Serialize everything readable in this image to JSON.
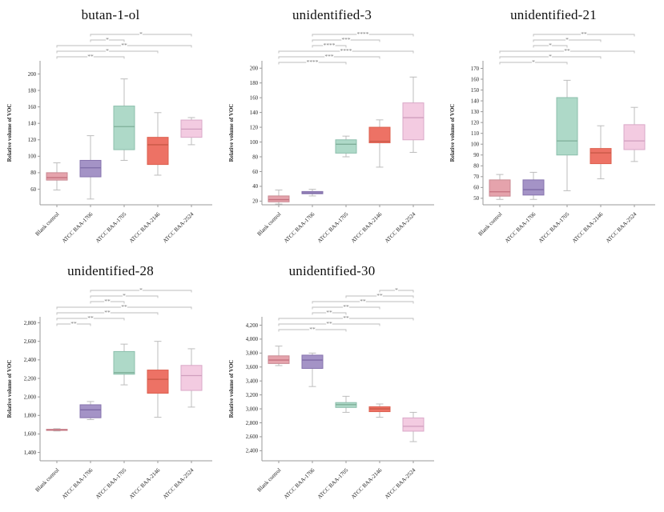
{
  "page": {
    "background": "#ffffff"
  },
  "palette": {
    "categories": [
      "Blank control",
      "ATCC BAA-1706",
      "ATCC BAA-1705",
      "ATCC BAA-2146",
      "ATCC BAA-2524"
    ],
    "box_styles": [
      {
        "category": "Blank control",
        "fill": "#E5A3AC",
        "stroke": "#C98A93",
        "median": "#C4717E"
      },
      {
        "category": "ATCC BAA-1706",
        "fill": "#A493C6",
        "stroke": "#8673AE",
        "median": "#7E6BA6"
      },
      {
        "category": "ATCC BAA-1705",
        "fill": "#AED9C8",
        "stroke": "#8CBFAC",
        "median": "#7FAE99"
      },
      {
        "category": "ATCC BAA-2146",
        "fill": "#ED7265",
        "stroke": "#DC604F",
        "median": "#C85847"
      },
      {
        "category": "ATCC BAA-2524",
        "fill": "#F3CBE1",
        "stroke": "#DAA8C8",
        "median": "#D09EBE"
      }
    ],
    "whisker_color": "#bdbdbd",
    "bracket_color": "#bdbdbd",
    "sig_label_color": "#777777",
    "axis_color": "#9a9a9a",
    "tick_text_color": "#222222"
  },
  "chart_data": [
    {
      "type": "box",
      "title": "butan-1-ol",
      "ylabel": "Relative volume of VOC",
      "categories": [
        "Blank control",
        "ATCC BAA-1706",
        "ATCC BAA-1705",
        "ATCC BAA-2146",
        "ATCC BAA-2524"
      ],
      "ylim": [
        41,
        216
      ],
      "yticks": [
        60,
        80,
        100,
        120,
        140,
        160,
        180,
        200
      ],
      "grid": false,
      "boxes": [
        {
          "whisker_low": 59,
          "q1": 71,
          "median": 74,
          "q3": 80,
          "whisker_high": 92
        },
        {
          "whisker_low": 48,
          "q1": 75,
          "median": 86,
          "q3": 95,
          "whisker_high": 125
        },
        {
          "whisker_low": 95,
          "q1": 108,
          "median": 136,
          "q3": 161,
          "whisker_high": 194
        },
        {
          "whisker_low": 77,
          "q1": 90,
          "median": 114,
          "q3": 123,
          "whisker_high": 153
        },
        {
          "whisker_low": 114,
          "q1": 123,
          "median": 133,
          "q3": 144,
          "whisker_high": 147
        }
      ],
      "significance_brackets": [
        {
          "from": 1,
          "to": 4,
          "label": "*"
        },
        {
          "from": 1,
          "to": 2,
          "label": "*"
        },
        {
          "from": 0,
          "to": 4,
          "label": "**"
        },
        {
          "from": 0,
          "to": 3,
          "label": "*"
        },
        {
          "from": 0,
          "to": 2,
          "label": "**"
        }
      ]
    },
    {
      "type": "box",
      "title": "unidentified-3",
      "ylabel": "Relative volume of VOC",
      "categories": [
        "Blank control",
        "ATCC BAA-1706",
        "ATCC BAA-1705",
        "ATCC BAA-2146",
        "ATCC BAA-2524"
      ],
      "ylim": [
        15,
        210
      ],
      "yticks": [
        20,
        40,
        60,
        80,
        100,
        120,
        140,
        160,
        180,
        200
      ],
      "grid": false,
      "boxes": [
        {
          "whisker_low": 16,
          "q1": 19,
          "median": 22,
          "q3": 27,
          "whisker_high": 35
        },
        {
          "whisker_low": 27,
          "q1": 30,
          "median": 31,
          "q3": 33,
          "whisker_high": 36
        },
        {
          "whisker_low": 80,
          "q1": 85,
          "median": 97,
          "q3": 103,
          "whisker_high": 108
        },
        {
          "whisker_low": 66,
          "q1": 99,
          "median": 101,
          "q3": 120,
          "whisker_high": 130
        },
        {
          "whisker_low": 86,
          "q1": 103,
          "median": 133,
          "q3": 153,
          "whisker_high": 188
        }
      ],
      "significance_brackets": [
        {
          "from": 1,
          "to": 4,
          "label": "****"
        },
        {
          "from": 1,
          "to": 3,
          "label": "***"
        },
        {
          "from": 1,
          "to": 2,
          "label": "****"
        },
        {
          "from": 0,
          "to": 4,
          "label": "****"
        },
        {
          "from": 0,
          "to": 3,
          "label": "***"
        },
        {
          "from": 0,
          "to": 2,
          "label": "****"
        }
      ]
    },
    {
      "type": "box",
      "title": "unidentified-21",
      "ylabel": "Relative volume of VOC",
      "categories": [
        "Blank control",
        "ATCC BAA-1706",
        "ATCC BAA-1705",
        "ATCC BAA-2146",
        "ATCC BAA-2524"
      ],
      "ylim": [
        44,
        177
      ],
      "yticks": [
        50,
        60,
        70,
        80,
        90,
        100,
        110,
        120,
        130,
        140,
        150,
        160,
        170
      ],
      "grid": false,
      "boxes": [
        {
          "whisker_low": 49,
          "q1": 52,
          "median": 56,
          "q3": 67,
          "whisker_high": 72
        },
        {
          "whisker_low": 49,
          "q1": 53,
          "median": 58,
          "q3": 67,
          "whisker_high": 74
        },
        {
          "whisker_low": 57,
          "q1": 90,
          "median": 103,
          "q3": 143,
          "whisker_high": 159
        },
        {
          "whisker_low": 68,
          "q1": 82,
          "median": 92,
          "q3": 96,
          "whisker_high": 117
        },
        {
          "whisker_low": 84,
          "q1": 95,
          "median": 103,
          "q3": 118,
          "whisker_high": 134
        }
      ],
      "significance_brackets": [
        {
          "from": 1,
          "to": 4,
          "label": "**"
        },
        {
          "from": 1,
          "to": 3,
          "label": "*"
        },
        {
          "from": 1,
          "to": 2,
          "label": "*"
        },
        {
          "from": 0,
          "to": 4,
          "label": "**"
        },
        {
          "from": 0,
          "to": 3,
          "label": "*"
        },
        {
          "from": 0,
          "to": 2,
          "label": "*"
        }
      ]
    },
    {
      "type": "box",
      "title": "unidentified-28",
      "ylabel": "Relative volume of VOC",
      "categories": [
        "Blank control",
        "ATCC BAA-1706",
        "ATCC BAA-1705",
        "ATCC BAA-2146",
        "ATCC BAA-2524"
      ],
      "ylim": [
        1310,
        2865
      ],
      "yticks": [
        1400,
        1600,
        1800,
        2000,
        2200,
        2400,
        2600,
        2800
      ],
      "grid": false,
      "boxes": [
        {
          "whisker_low": 1632,
          "q1": 1638,
          "median": 1644,
          "q3": 1650,
          "whisker_high": 1657
        },
        {
          "whisker_low": 1755,
          "q1": 1775,
          "median": 1860,
          "q3": 1915,
          "whisker_high": 1950
        },
        {
          "whisker_low": 2130,
          "q1": 2245,
          "median": 2262,
          "q3": 2490,
          "whisker_high": 2570
        },
        {
          "whisker_low": 1780,
          "q1": 2040,
          "median": 2190,
          "q3": 2290,
          "whisker_high": 2600
        },
        {
          "whisker_low": 1890,
          "q1": 2070,
          "median": 2230,
          "q3": 2340,
          "whisker_high": 2520
        }
      ],
      "significance_brackets": [
        {
          "from": 1,
          "to": 4,
          "label": "*"
        },
        {
          "from": 1,
          "to": 3,
          "label": "*"
        },
        {
          "from": 1,
          "to": 2,
          "label": "**"
        },
        {
          "from": 0,
          "to": 4,
          "label": "**"
        },
        {
          "from": 0,
          "to": 3,
          "label": "**"
        },
        {
          "from": 0,
          "to": 2,
          "label": "**"
        },
        {
          "from": 0,
          "to": 1,
          "label": "**"
        }
      ]
    },
    {
      "type": "box",
      "title": "unidentified-30",
      "ylabel": "Relative volume of VOC",
      "categories": [
        "Blank control",
        "ATCC BAA-1706",
        "ATCC BAA-1705",
        "ATCC BAA-2146",
        "ATCC BAA-2524"
      ],
      "ylim": [
        2255,
        4320
      ],
      "yticks": [
        2400,
        2600,
        2800,
        3000,
        3200,
        3400,
        3600,
        3800,
        4000,
        4200
      ],
      "grid": false,
      "boxes": [
        {
          "whisker_low": 3620,
          "q1": 3650,
          "median": 3700,
          "q3": 3760,
          "whisker_high": 3900
        },
        {
          "whisker_low": 3320,
          "q1": 3580,
          "median": 3700,
          "q3": 3770,
          "whisker_high": 3800
        },
        {
          "whisker_low": 2950,
          "q1": 3020,
          "median": 3060,
          "q3": 3090,
          "whisker_high": 3180
        },
        {
          "whisker_low": 2880,
          "q1": 2960,
          "median": 3000,
          "q3": 3030,
          "whisker_high": 3070
        },
        {
          "whisker_low": 2530,
          "q1": 2680,
          "median": 2750,
          "q3": 2870,
          "whisker_high": 2950
        }
      ],
      "significance_brackets": [
        {
          "from": 3,
          "to": 4,
          "label": "*"
        },
        {
          "from": 2,
          "to": 4,
          "label": "**"
        },
        {
          "from": 1,
          "to": 4,
          "label": "**"
        },
        {
          "from": 1,
          "to": 3,
          "label": "**"
        },
        {
          "from": 1,
          "to": 2,
          "label": "**"
        },
        {
          "from": 0,
          "to": 4,
          "label": "**"
        },
        {
          "from": 0,
          "to": 3,
          "label": "**"
        },
        {
          "from": 0,
          "to": 2,
          "label": "**"
        }
      ]
    }
  ]
}
